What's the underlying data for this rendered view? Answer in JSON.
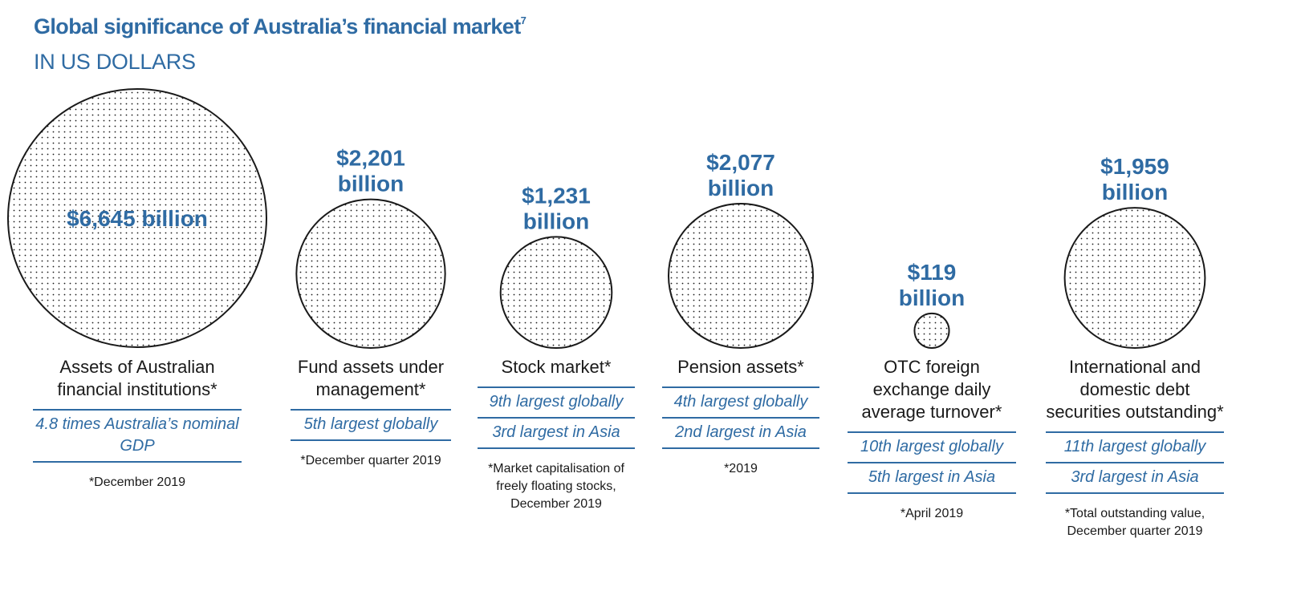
{
  "title": "Global significance of Australia’s financial market",
  "title_footnote": "7",
  "subtitle": "IN US DOLLARS",
  "colors": {
    "accent": "#2f6ba3",
    "text": "#1a1a1a",
    "circle_stroke": "#1a1a1a"
  },
  "chart_data": {
    "type": "bubble",
    "unit": "billion US dollars",
    "items": [
      {
        "value": 6645,
        "value_line1": "$6,645 billion",
        "value_line2": "",
        "label": "Assets of Australian financial institutions*",
        "ranks": [
          "4.8 times Australia’s nominal GDP"
        ],
        "note": "*December 2019"
      },
      {
        "value": 2201,
        "value_line1": "$2,201",
        "value_line2": "billion",
        "label": "Fund assets under management*",
        "ranks": [
          "5th largest globally"
        ],
        "note": "*December quarter 2019"
      },
      {
        "value": 1231,
        "value_line1": "$1,231",
        "value_line2": "billion",
        "label": "Stock market*",
        "ranks": [
          "9th largest globally",
          "3rd largest in Asia"
        ],
        "note": "*Market capitalisation of freely floating stocks, December 2019"
      },
      {
        "value": 2077,
        "value_line1": "$2,077",
        "value_line2": "billion",
        "label": "Pension assets*",
        "ranks": [
          "4th largest globally",
          "2nd largest in Asia"
        ],
        "note": "*2019"
      },
      {
        "value": 119,
        "value_line1": "$119",
        "value_line2": "billion",
        "label": "OTC foreign exchange daily average turnover*",
        "ranks": [
          "10th largest globally",
          "5th largest in Asia"
        ],
        "note": "*April 2019"
      },
      {
        "value": 1959,
        "value_line1": "$1,959",
        "value_line2": "billion",
        "label": "International and domestic debt securities outstanding*",
        "ranks": [
          "11th largest globally",
          "3rd largest in Asia"
        ],
        "note": "*Total outstanding value, December quarter 2019"
      }
    ]
  }
}
